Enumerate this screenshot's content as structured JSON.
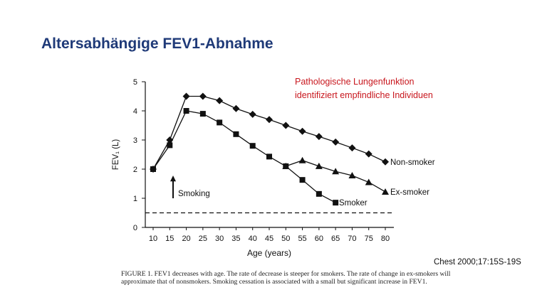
{
  "slide": {
    "title": "Altersabhängige FEV1-Abnahme",
    "note_line1": "Pathologische Lungenfunktion",
    "note_line2": "identifiziert empfindliche Individuen",
    "citation": "Chest 2000;17:15S-19S",
    "caption": "FIGURE 1. FEV1 decreases with age. The rate of decrease is steeper for smokers. The rate of change in ex-smokers will approximate that of nonsmokers. Smoking cessation is associated with a small but significant increase in FEV1."
  },
  "colors": {
    "title": "#1f3a78",
    "note": "#c8161d",
    "series": "#111111"
  },
  "chart_data": {
    "type": "line",
    "xlabel": "Age (years)",
    "ylabel": "FEV₁ (L)",
    "x_ticks": [
      10,
      15,
      20,
      25,
      30,
      35,
      40,
      45,
      50,
      55,
      60,
      65,
      70,
      75,
      80
    ],
    "y_ticks": [
      0,
      1,
      2,
      3,
      4,
      5
    ],
    "xlim": [
      7.5,
      82
    ],
    "ylim": [
      0,
      5
    ],
    "grid": false,
    "series": [
      {
        "name": "Non-smoker",
        "marker": "diamond",
        "points": [
          [
            10,
            2.0
          ],
          [
            15,
            3.0
          ],
          [
            20,
            4.5
          ],
          [
            25,
            4.5
          ],
          [
            30,
            4.35
          ],
          [
            35,
            4.08
          ],
          [
            40,
            3.88
          ],
          [
            45,
            3.7
          ],
          [
            50,
            3.5
          ],
          [
            55,
            3.3
          ],
          [
            60,
            3.12
          ],
          [
            65,
            2.93
          ],
          [
            70,
            2.73
          ],
          [
            75,
            2.52
          ],
          [
            80,
            2.25
          ]
        ]
      },
      {
        "name": "Ex-smoker",
        "marker": "triangle",
        "points": [
          [
            50,
            2.1
          ],
          [
            55,
            2.3
          ],
          [
            60,
            2.1
          ],
          [
            65,
            1.92
          ],
          [
            70,
            1.78
          ],
          [
            75,
            1.55
          ],
          [
            80,
            1.22
          ]
        ]
      },
      {
        "name": "Smoker",
        "marker": "square",
        "points": [
          [
            10,
            2.0
          ],
          [
            15,
            2.82
          ],
          [
            20,
            4.0
          ],
          [
            25,
            3.9
          ],
          [
            30,
            3.6
          ],
          [
            35,
            3.2
          ],
          [
            40,
            2.8
          ],
          [
            45,
            2.43
          ],
          [
            50,
            2.1
          ],
          [
            55,
            1.63
          ],
          [
            60,
            1.15
          ],
          [
            65,
            0.85
          ]
        ]
      }
    ],
    "reference_line": {
      "style": "dashed",
      "y": 0.5
    },
    "annotation": "Smoking"
  }
}
